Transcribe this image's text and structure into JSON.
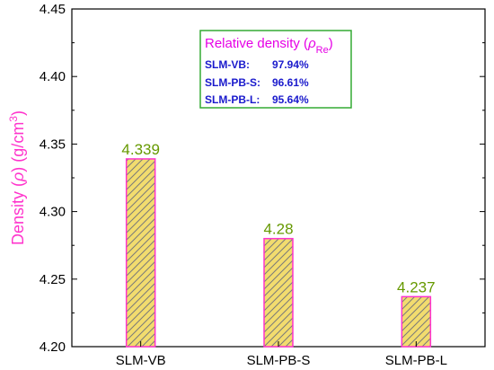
{
  "chart_data": {
    "type": "bar",
    "categories": [
      "SLM-VB",
      "SLM-PB-S",
      "SLM-PB-L"
    ],
    "values": [
      4.339,
      4.28,
      4.237
    ],
    "value_labels": [
      "4.339",
      "4.28",
      "4.237"
    ],
    "ylim": [
      4.2,
      4.45
    ],
    "yticks": [
      "4.20",
      "4.25",
      "4.30",
      "4.35",
      "4.40",
      "4.45"
    ],
    "ytick_values": [
      4.2,
      4.25,
      4.3,
      4.35,
      4.4,
      4.45
    ],
    "ylabel": {
      "prefix": "Density (",
      "symbol": "ρ",
      "middle": ") (g/cm",
      "superscript": "3",
      "suffix": ")"
    },
    "xlabel": "",
    "grid": false,
    "bar_fill_color": "#f2dc6e",
    "bar_edge_color": "#ff33cc",
    "hatch_color": "#7a7a7a",
    "data_label_color": "#669900",
    "annotation": {
      "title_prefix": "Relative density (",
      "title_symbol": "ρ",
      "title_subscript": "Re",
      "title_suffix": ")",
      "border_color": "#33aa33",
      "title_color": "#e600e6",
      "rows_color": "#1a1acc",
      "rows": [
        {
          "label": "SLM-VB:",
          "value": "97.94%"
        },
        {
          "label": "SLM-PB-S:",
          "value": "96.61%"
        },
        {
          "label": "SLM-PB-L:",
          "value": "95.64%"
        }
      ]
    }
  }
}
